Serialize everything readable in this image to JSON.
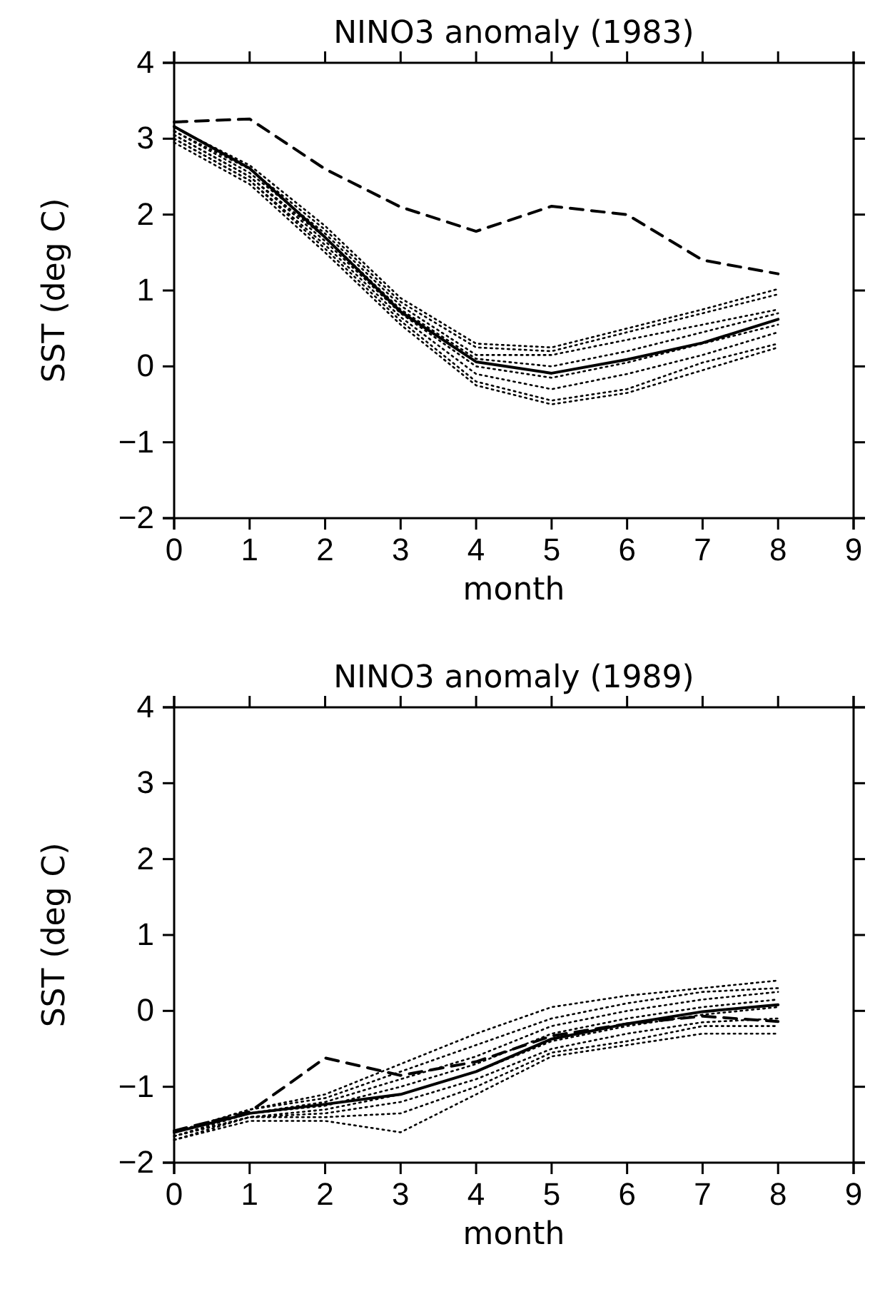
{
  "chart_data": [
    {
      "type": "line",
      "title": "NINO3 anomaly (1983)",
      "xlabel": "month",
      "ylabel": "SST (deg C)",
      "xlim": [
        0,
        9
      ],
      "xticks": [
        0,
        1,
        2,
        3,
        4,
        5,
        6,
        7,
        8,
        9
      ],
      "ylim": [
        -2,
        4
      ],
      "yticks": [
        -2,
        -1,
        0,
        1,
        2,
        3,
        4
      ],
      "grid": false,
      "marker": "none",
      "x": [
        0,
        1,
        2,
        3,
        4,
        5,
        6,
        7,
        8
      ],
      "series": [
        {
          "color": "#000000",
          "line_style": "dotted",
          "values": [
            3.15,
            2.65,
            1.85,
            0.9,
            0.3,
            0.25,
            0.5,
            0.75,
            1.02
          ]
        },
        {
          "color": "#000000",
          "line_style": "dotted",
          "values": [
            3.1,
            2.6,
            1.8,
            0.85,
            0.25,
            0.2,
            0.45,
            0.7,
            0.95
          ]
        },
        {
          "color": "#000000",
          "line_style": "dotted",
          "values": [
            3.1,
            2.55,
            1.75,
            0.8,
            0.15,
            0.15,
            0.35,
            0.55,
            0.75
          ]
        },
        {
          "color": "#000000",
          "line_style": "dotted",
          "values": [
            3.05,
            2.5,
            1.7,
            0.75,
            0.1,
            0.0,
            0.2,
            0.45,
            0.7
          ]
        },
        {
          "color": "#000000",
          "line_style": "dotted",
          "values": [
            3.05,
            2.5,
            1.65,
            0.7,
            0.0,
            -0.15,
            0.05,
            0.3,
            0.55
          ]
        },
        {
          "color": "#000000",
          "line_style": "dotted",
          "values": [
            3.0,
            2.45,
            1.6,
            0.65,
            -0.1,
            -0.3,
            -0.1,
            0.15,
            0.45
          ]
        },
        {
          "color": "#000000",
          "line_style": "dotted",
          "values": [
            3.0,
            2.45,
            1.55,
            0.6,
            -0.2,
            -0.45,
            -0.3,
            0.05,
            0.3
          ]
        },
        {
          "color": "#000000",
          "line_style": "dotted",
          "values": [
            2.95,
            2.4,
            1.5,
            0.55,
            -0.25,
            -0.5,
            -0.35,
            -0.05,
            0.25
          ]
        },
        {
          "color": "#000000",
          "line_style": "dashed",
          "values": [
            3.22,
            3.26,
            2.6,
            2.1,
            1.78,
            2.11,
            2.0,
            1.4,
            1.22
          ]
        },
        {
          "color": "#000000",
          "line_style": "solid",
          "values": [
            3.16,
            2.61,
            1.7,
            0.72,
            0.06,
            -0.09,
            0.09,
            0.31,
            0.62
          ]
        }
      ]
    },
    {
      "type": "line",
      "title": "NINO3 anomaly (1989)",
      "xlabel": "month",
      "ylabel": "SST (deg C)",
      "xlim": [
        0,
        9
      ],
      "xticks": [
        0,
        1,
        2,
        3,
        4,
        5,
        6,
        7,
        8,
        9
      ],
      "ylim": [
        -2,
        4
      ],
      "yticks": [
        -2,
        -1,
        0,
        1,
        2,
        3,
        4
      ],
      "grid": false,
      "marker": "none",
      "x": [
        0,
        1,
        2,
        3,
        4,
        5,
        6,
        7,
        8
      ],
      "series": [
        {
          "color": "#000000",
          "line_style": "dotted",
          "values": [
            -1.6,
            -1.3,
            -1.1,
            -0.7,
            -0.3,
            0.05,
            0.2,
            0.3,
            0.4
          ]
        },
        {
          "color": "#000000",
          "line_style": "dotted",
          "values": [
            -1.6,
            -1.3,
            -1.15,
            -0.8,
            -0.45,
            -0.1,
            0.1,
            0.25,
            0.3
          ]
        },
        {
          "color": "#000000",
          "line_style": "dotted",
          "values": [
            -1.6,
            -1.35,
            -1.2,
            -0.9,
            -0.6,
            -0.2,
            0.0,
            0.15,
            0.25
          ]
        },
        {
          "color": "#000000",
          "line_style": "dotted",
          "values": [
            -1.65,
            -1.35,
            -1.25,
            -1.0,
            -0.7,
            -0.3,
            -0.1,
            0.05,
            0.15
          ]
        },
        {
          "color": "#000000",
          "line_style": "dotted",
          "values": [
            -1.65,
            -1.4,
            -1.3,
            -1.1,
            -0.8,
            -0.4,
            -0.2,
            -0.05,
            0.05
          ]
        },
        {
          "color": "#000000",
          "line_style": "dotted",
          "values": [
            -1.65,
            -1.4,
            -1.35,
            -1.2,
            -0.9,
            -0.5,
            -0.3,
            -0.15,
            -0.1
          ]
        },
        {
          "color": "#000000",
          "line_style": "dotted",
          "values": [
            -1.7,
            -1.4,
            -1.4,
            -1.35,
            -1.0,
            -0.55,
            -0.4,
            -0.2,
            -0.2
          ]
        },
        {
          "color": "#000000",
          "line_style": "dotted",
          "values": [
            -1.7,
            -1.45,
            -1.45,
            -1.6,
            -1.1,
            -0.6,
            -0.45,
            -0.3,
            -0.3
          ]
        },
        {
          "color": "#000000",
          "line_style": "dashed",
          "values": [
            -1.58,
            -1.33,
            -0.62,
            -0.85,
            -0.67,
            -0.33,
            -0.17,
            -0.07,
            -0.14
          ]
        },
        {
          "color": "#000000",
          "line_style": "solid",
          "values": [
            -1.6,
            -1.35,
            -1.23,
            -1.1,
            -0.8,
            -0.37,
            -0.17,
            -0.01,
            0.08
          ]
        }
      ]
    }
  ]
}
